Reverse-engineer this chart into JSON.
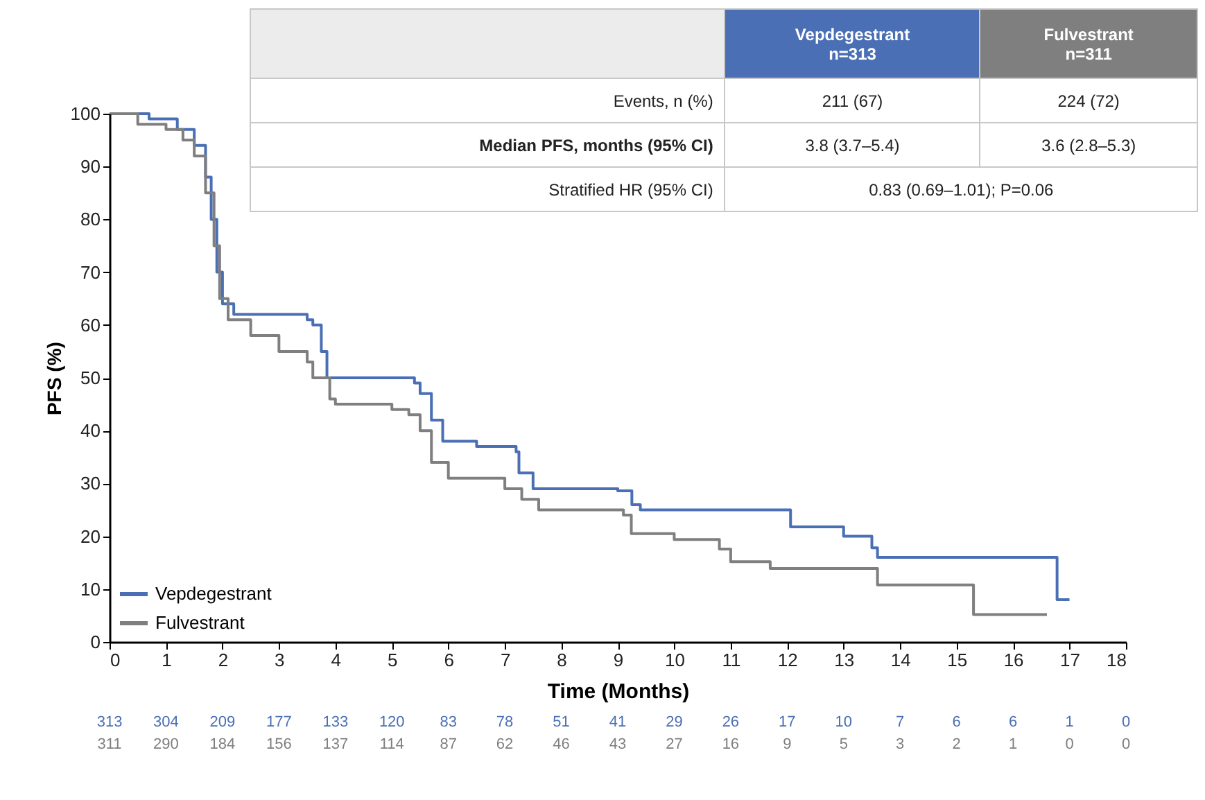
{
  "chart_data": {
    "type": "step",
    "xlabel": "Time (Months)",
    "ylabel": "PFS (%)",
    "xlim": [
      0,
      18
    ],
    "xticks": [
      0,
      1,
      2,
      3,
      4,
      5,
      6,
      7,
      8,
      9,
      10,
      11,
      12,
      13,
      14,
      15,
      16,
      17,
      18
    ],
    "ylim": [
      0,
      100
    ],
    "yticks": [
      0,
      10,
      20,
      30,
      40,
      50,
      60,
      70,
      80,
      90,
      100
    ],
    "grid": false,
    "legend": "bottom left",
    "marker": "none",
    "line_style": "solid",
    "series": [
      {
        "name": "Vepdegestrant",
        "color": "#4a6fb5",
        "x": [
          0,
          0.7,
          1.2,
          1.5,
          1.7,
          1.8,
          1.9,
          2.0,
          2.2,
          3.5,
          3.6,
          3.75,
          3.85,
          5.4,
          5.5,
          5.7,
          5.9,
          6.5,
          7.2,
          7.25,
          7.5,
          9.0,
          9.25,
          9.4,
          11.9,
          12.06,
          13.0,
          13.5,
          13.6,
          16.78,
          17.0
        ],
        "values": [
          100,
          99,
          97,
          94,
          88,
          80,
          70,
          64,
          62,
          61,
          60,
          55,
          50,
          49,
          47,
          42,
          38,
          37,
          36,
          32,
          29,
          28.6,
          26,
          25,
          25,
          21.8,
          20,
          17.8,
          16,
          8,
          8
        ]
      },
      {
        "name": "Fulvestrant",
        "color": "#7f7f7f",
        "x": [
          0,
          0.5,
          1.0,
          1.3,
          1.5,
          1.7,
          1.85,
          1.95,
          2.1,
          2.5,
          3.0,
          3.5,
          3.6,
          3.9,
          4.0,
          5.0,
          5.3,
          5.5,
          5.7,
          6.0,
          7.0,
          7.3,
          7.6,
          9.1,
          9.24,
          10.0,
          10.8,
          11.0,
          11.7,
          13.6,
          15.3,
          16.6
        ],
        "values": [
          100,
          98,
          97,
          95,
          92,
          85,
          75,
          65,
          61,
          58,
          55,
          53,
          50,
          46,
          45,
          44,
          43,
          40,
          34,
          31,
          29,
          27,
          25,
          24,
          20.5,
          19.4,
          17.6,
          15.2,
          13.9,
          10.8,
          5.2,
          5.2
        ]
      }
    ],
    "annotations": [
      "Vepdegestrant\nn=313",
      "Fulvestrant\nn=311",
      "Events, n (%)",
      "211 (67)",
      "224 (72)",
      "Median PFS, months (95% CI)",
      "3.8 (3.7–5.4)",
      "3.6 (2.8–5.3)",
      "Stratified HR (95% CI)",
      "0.83 (0.69–1.01); P=0.06",
      "313",
      "304",
      "209",
      "177",
      "133",
      "120",
      "83",
      "78",
      "51",
      "41",
      "29",
      "26",
      "17",
      "10",
      "7",
      "6",
      "6",
      "1",
      "0",
      "311",
      "290",
      "184",
      "156",
      "137",
      "114",
      "87",
      "62",
      "46",
      "43",
      "27",
      "16",
      "9",
      "5",
      "3",
      "2",
      "1",
      "0",
      "0"
    ]
  }
}
